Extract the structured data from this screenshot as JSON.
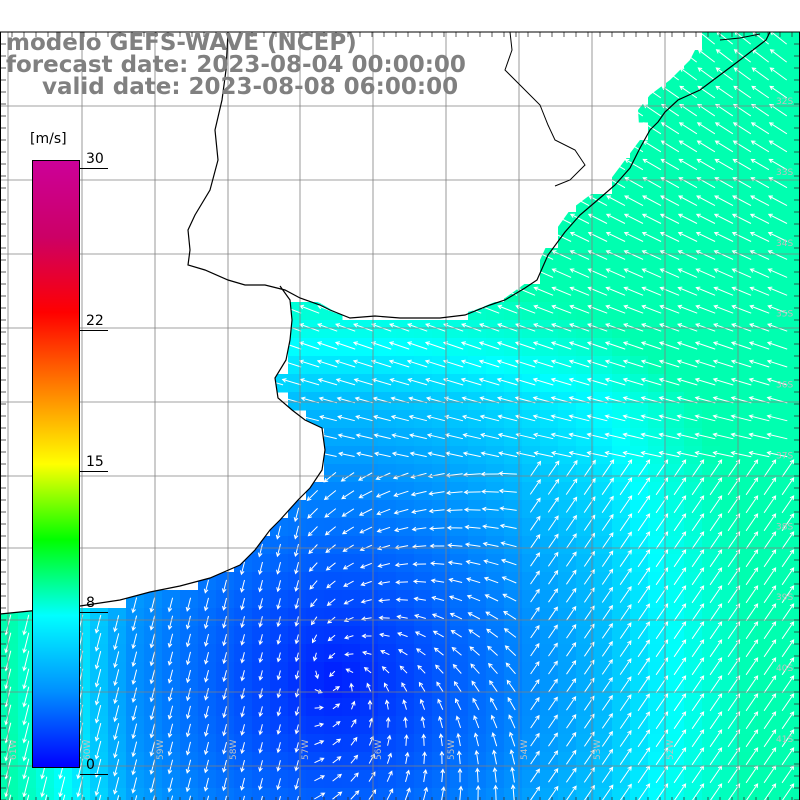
{
  "title": {
    "line1": "modelo GEFS-WAVE (NCEP)",
    "line2": "forecast date: 2023-08-04 00:00:00",
    "line3": "valid date: 2023-08-08 06:00:00"
  },
  "colorbar": {
    "unit": "[m/s]",
    "ticks": [
      "30",
      "22",
      "15",
      "8",
      "0"
    ],
    "tick_values": [
      30,
      22,
      15,
      8,
      0
    ],
    "range": [
      0,
      30
    ],
    "colors": [
      "#0000ff",
      "#0090ff",
      "#00ffff",
      "#00ff00",
      "#ffff00",
      "#ff8000",
      "#ff0000",
      "#cc0066",
      "#cc0099"
    ]
  },
  "map": {
    "land_color": "#ffffff",
    "grid_color": "#808080",
    "arrow_color": "#ffffff",
    "lat_labels": [
      "32S",
      "33S",
      "34S",
      "35S",
      "36S",
      "37S",
      "38S",
      "39S",
      "40S",
      "41S"
    ],
    "lon_labels": [
      "61W",
      "60W",
      "59W",
      "58W",
      "57W",
      "56W",
      "55W",
      "54W",
      "53W",
      "52W"
    ]
  }
}
